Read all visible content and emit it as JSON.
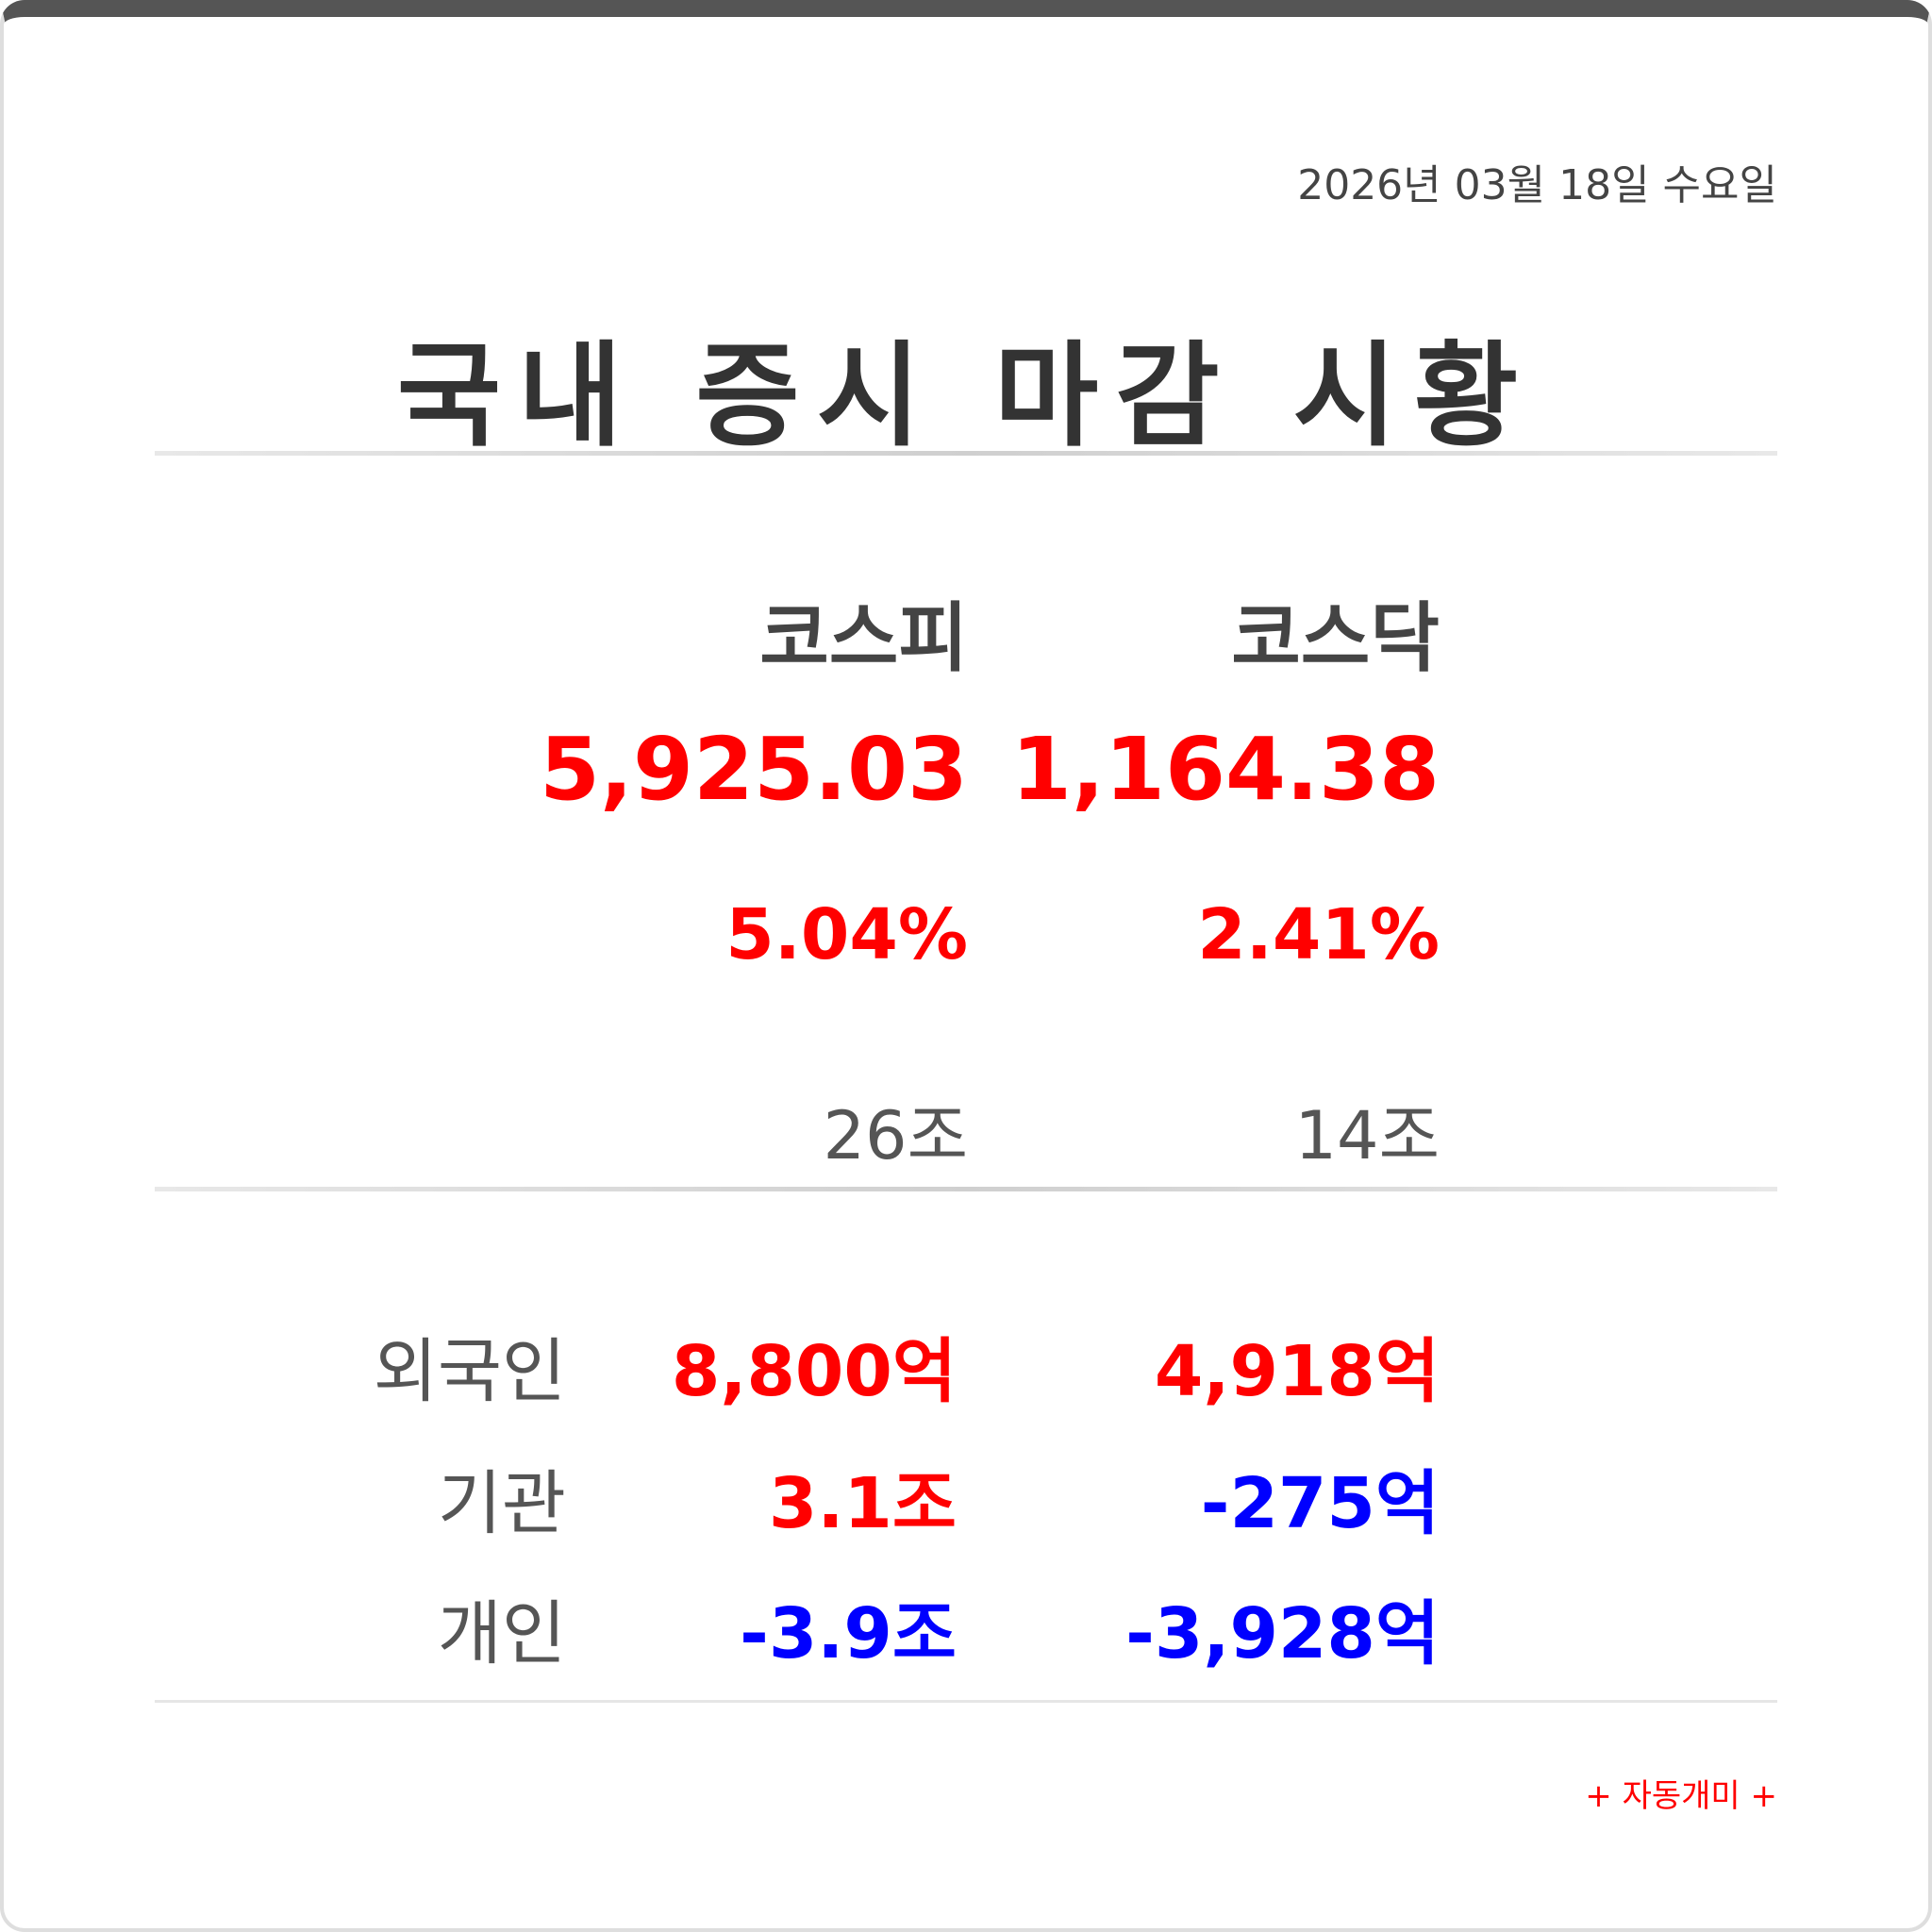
{
  "date": "2026년 03월 18일 수요일",
  "title": "국내 증시 마감 시황",
  "colors": {
    "up": "#ff0000",
    "down": "#0000ff",
    "text": "#333333",
    "muted": "#555555"
  },
  "markets": [
    {
      "name": "코스피",
      "index": "5,925.03",
      "change": "5.04%",
      "volume": "26조",
      "trend": "up"
    },
    {
      "name": "코스닥",
      "index": "1,164.38",
      "change": "2.41%",
      "volume": "14조",
      "trend": "up"
    }
  ],
  "investors": [
    {
      "label": "외국인",
      "kospi": "8,800억",
      "kospi_trend": "up",
      "kosdaq": "4,918억",
      "kosdaq_trend": "up"
    },
    {
      "label": "기관",
      "kospi": "3.1조",
      "kospi_trend": "up",
      "kosdaq": "-275억",
      "kosdaq_trend": "down"
    },
    {
      "label": "개인",
      "kospi": "-3.9조",
      "kospi_trend": "down",
      "kosdaq": "-3,928억",
      "kosdaq_trend": "down"
    }
  ],
  "footer": "+ 자동개미 +"
}
